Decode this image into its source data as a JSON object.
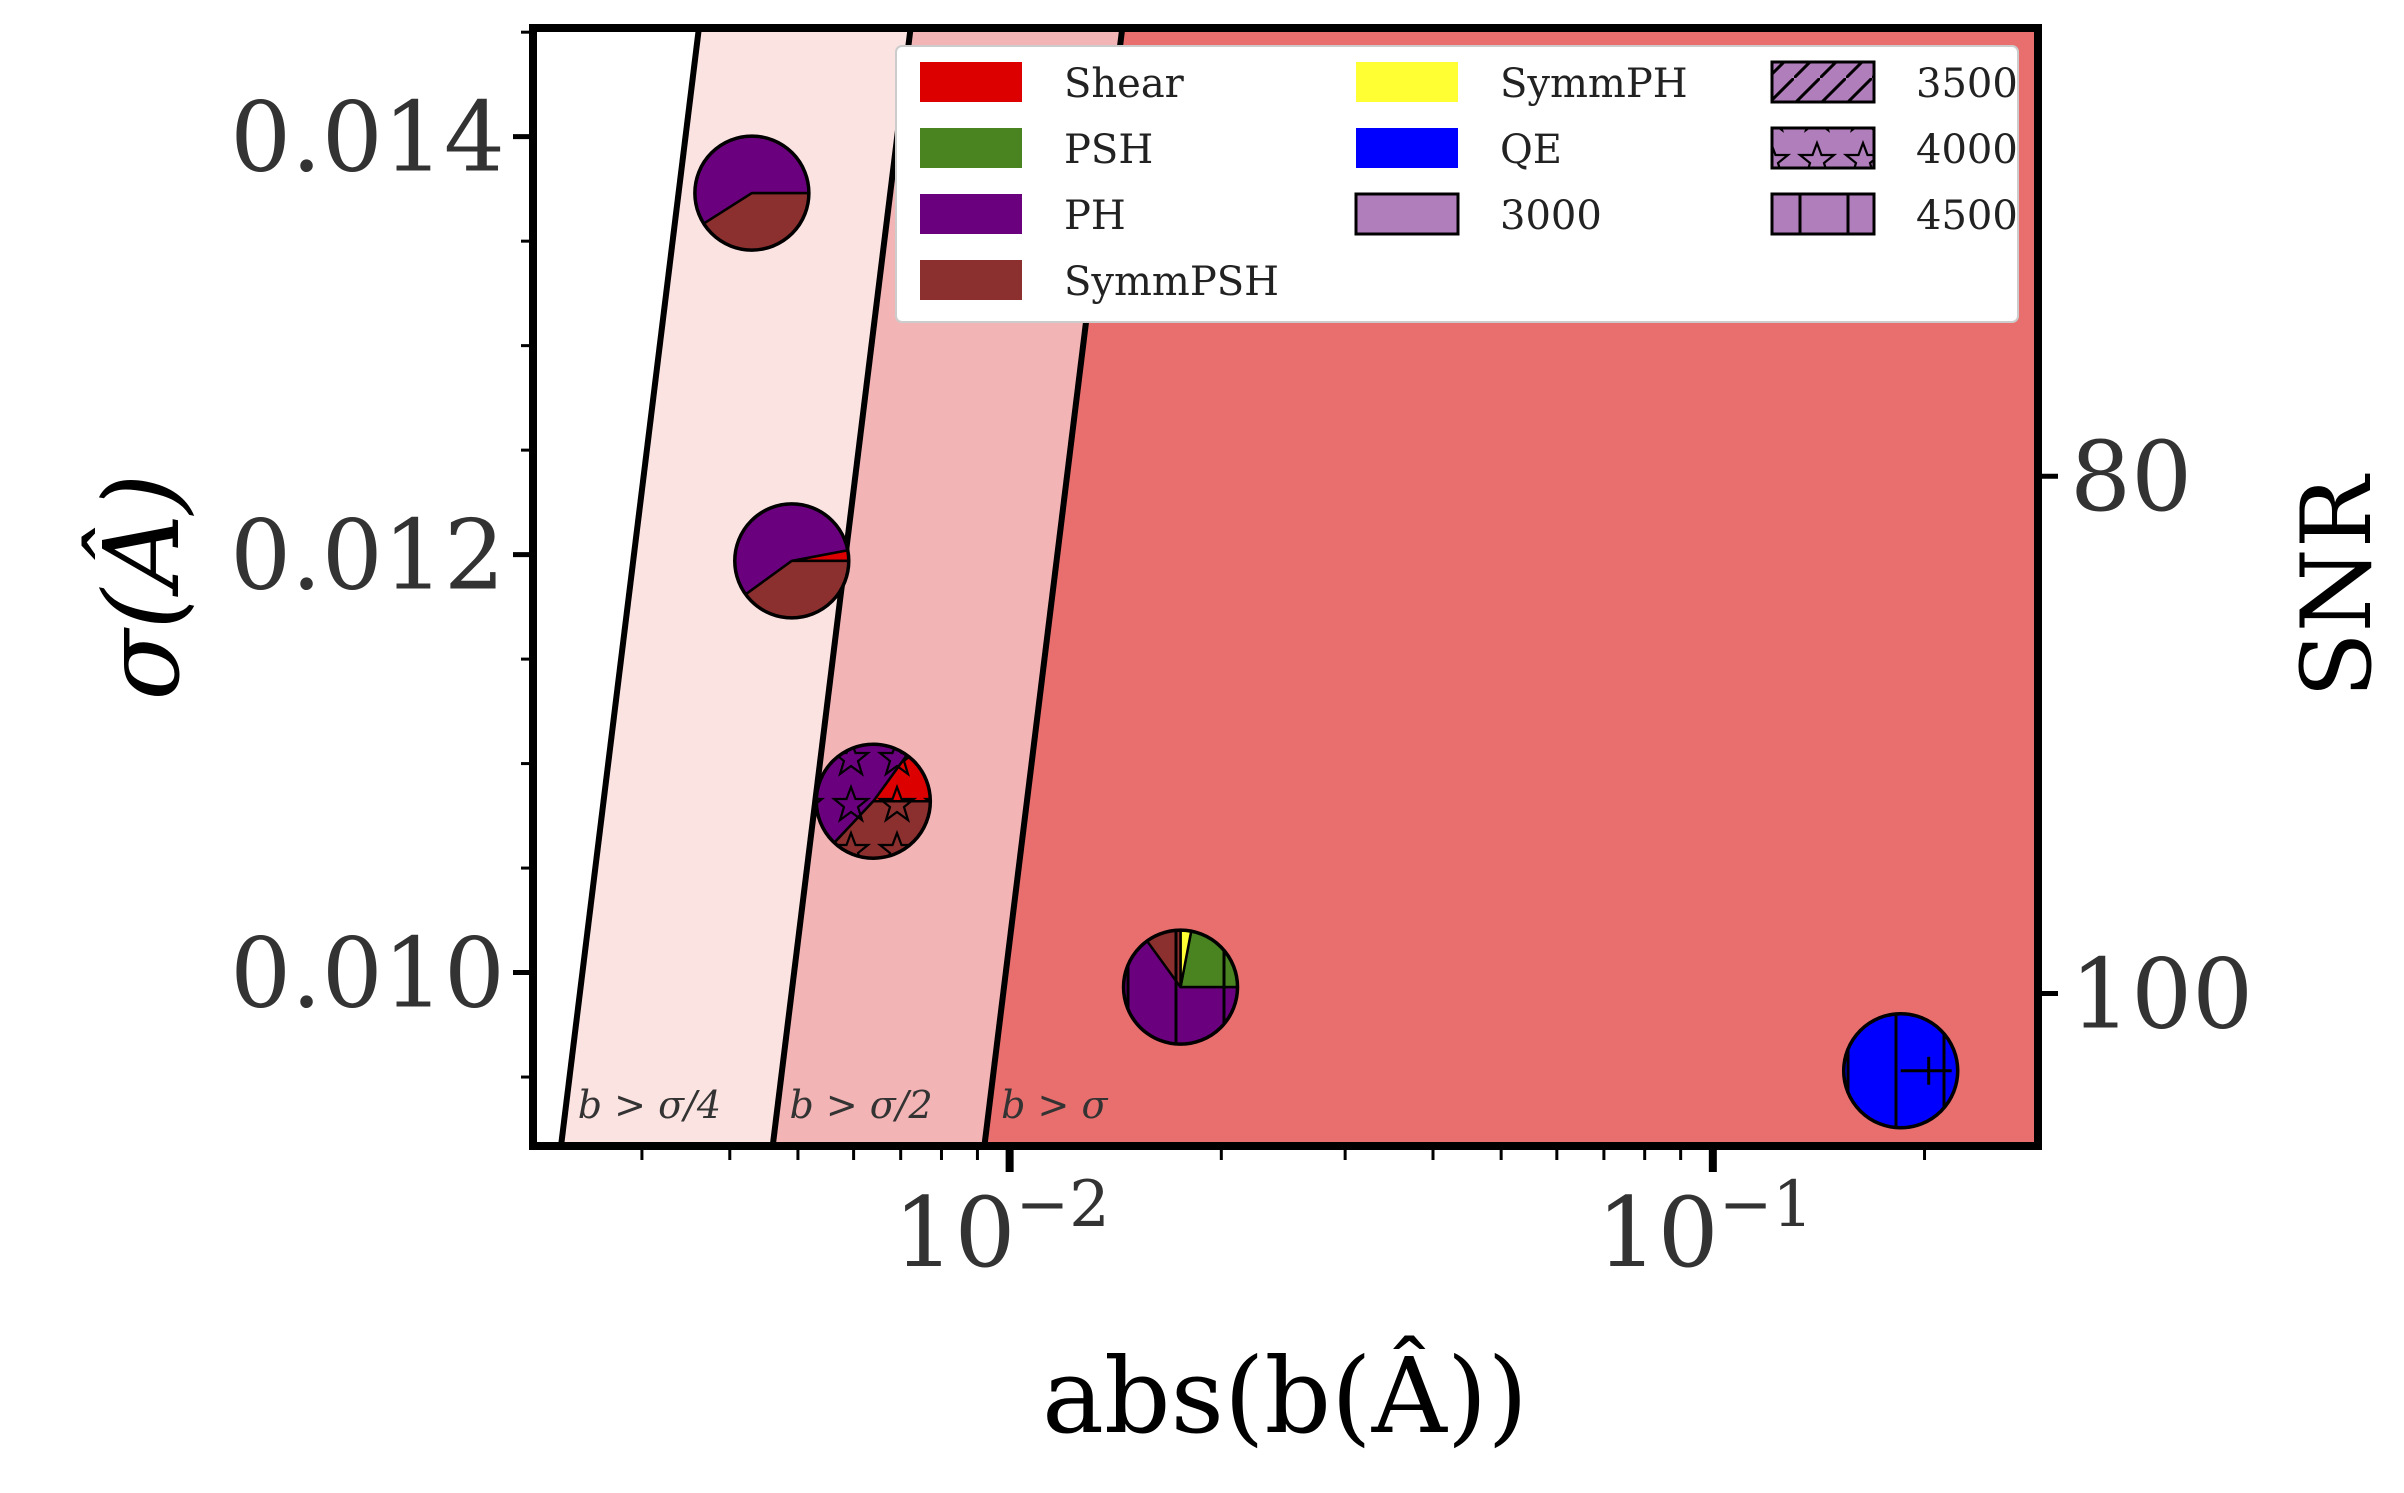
{
  "chart_data": {
    "type": "scatter",
    "subtype": "pie-marker scatter on log-x axis with bias regions",
    "xlabel": "abs(b(Â))",
    "ylabel": "σ(Â)",
    "y2label": "SNR",
    "xscale": "log",
    "xlim": [
      0.0021,
      0.29
    ],
    "ylim": [
      0.00917,
      0.01452
    ],
    "x_ticks": [
      {
        "value": 0.01,
        "base": "10",
        "exp": "−2"
      },
      {
        "value": 0.1,
        "base": "10",
        "exp": "−1"
      }
    ],
    "y_ticks": [
      {
        "value": 0.01,
        "label": "0.010"
      },
      {
        "value": 0.012,
        "label": "0.012"
      },
      {
        "value": 0.014,
        "label": "0.014"
      }
    ],
    "y_minor": [
      0.0095,
      0.0105,
      0.011,
      0.0115,
      0.0125,
      0.013,
      0.0135,
      0.0145
    ],
    "y2_ticks": [
      {
        "snr": 80,
        "label": "80"
      },
      {
        "snr": 100,
        "label": "100"
      }
    ],
    "snr_scale": 0.99,
    "regions": [
      {
        "name": "b > σ/4",
        "label_plain": "b > σ/4",
        "factor": 4,
        "color": "#fbe3e2"
      },
      {
        "name": "b > σ/2",
        "label_plain": "b > σ/2",
        "factor": 2,
        "color": "#f2b4b4"
      },
      {
        "name": "b > σ",
        "label_plain": "b > σ",
        "factor": 1,
        "color": "#e86f6e"
      }
    ],
    "points": [
      {
        "x": 0.0043,
        "y": 0.01373,
        "slices": [
          {
            "series": "PH",
            "frac": 0.59
          },
          {
            "series": "SymmPSH",
            "frac": 0.41
          }
        ],
        "hatch": "none"
      },
      {
        "x": 0.0049,
        "y": 0.01197,
        "slices": [
          {
            "series": "Shear",
            "frac": 0.03
          },
          {
            "series": "PH",
            "frac": 0.57
          },
          {
            "series": "SymmPSH",
            "frac": 0.4
          }
        ],
        "hatch": "none"
      },
      {
        "x": 0.0064,
        "y": 0.01082,
        "slices": [
          {
            "series": "Shear",
            "frac": 0.15
          },
          {
            "series": "PH",
            "frac": 0.48
          },
          {
            "series": "SymmPSH",
            "frac": 0.37
          }
        ],
        "hatch": "stars"
      },
      {
        "x": 0.0175,
        "y": 0.00993,
        "slices": [
          {
            "series": "PSH",
            "frac": 0.22
          },
          {
            "series": "SymmPH",
            "frac": 0.03
          },
          {
            "series": "SymmPSH",
            "frac": 0.1
          },
          {
            "series": "PH",
            "frac": 0.65
          }
        ],
        "hatch": "vlines"
      },
      {
        "x": 0.185,
        "y": 0.00953,
        "slices": [
          {
            "series": "QE",
            "frac": 1.0
          }
        ],
        "hatch": "vlines-plus"
      }
    ],
    "legend": {
      "placement": "top-right",
      "series": [
        {
          "name": "Shear",
          "color": "#dd0000"
        },
        {
          "name": "PSH",
          "color": "#4a8421"
        },
        {
          "name": "PH",
          "color": "#6b007f"
        },
        {
          "name": "SymmPSH",
          "color": "#8b2f2f"
        },
        {
          "name": "SymmPH",
          "color": "#ffff33"
        },
        {
          "name": "QE",
          "color": "#0000ff"
        }
      ],
      "hatches": [
        {
          "name": "3000",
          "pattern": "none"
        },
        {
          "name": "3500",
          "pattern": "diag"
        },
        {
          "name": "4000",
          "pattern": "stars"
        },
        {
          "name": "4500",
          "pattern": "vlines"
        }
      ],
      "hatch_swatch_color": "#b07fbb"
    }
  }
}
